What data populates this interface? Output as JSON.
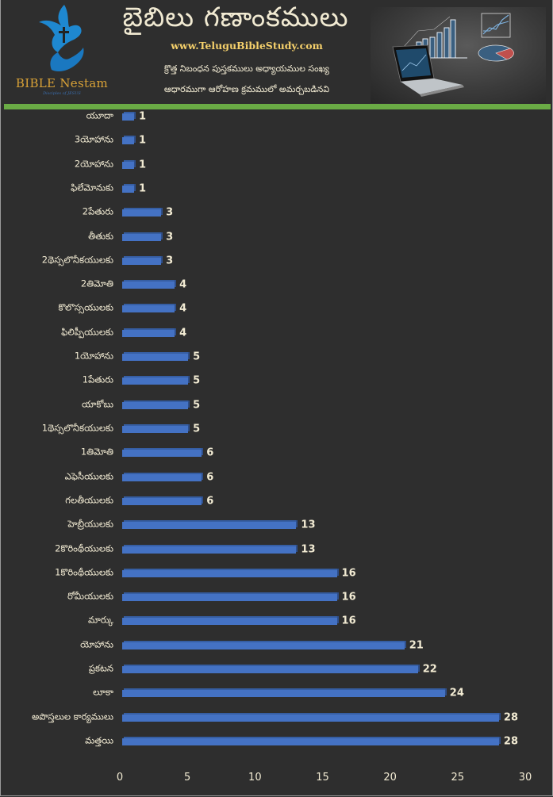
{
  "header": {
    "logo_name": "BIBLE Nestam",
    "logo_tagline": "Disciples of JESUS",
    "title": "బైబిలు గణాంకములు",
    "url": "www.TeluguBibleStudy.com",
    "subtitle_line1": "క్రొత్త నిబంధన పుస్తకములు అధ్యాయముల సంఖ్య",
    "subtitle_line2": "ఆధారముగా ఆరోహణ క్రమములో అమర్చబడినవి",
    "hero_image": "laptop-with-charts-illustration"
  },
  "colors": {
    "background": "#2e2e2e",
    "bar": "#4472c4",
    "accent_green": "#6aab45",
    "text": "#f1ead2",
    "url": "#f5d06b",
    "logo_gold": "#d9a237",
    "logo_blue": "#1e88d0"
  },
  "chart_data": {
    "type": "bar",
    "orientation": "horizontal",
    "title": "బైబిలు గణాంకములు",
    "subtitle": "క్రొత్త నిబంధన పుస్తకములు అధ్యాయముల సంఖ్య ఆధారముగా ఆరోహణ క్రమములో అమర్చబడినవి",
    "xlabel": "",
    "ylabel": "",
    "xlim": [
      0,
      30
    ],
    "x_ticks": [
      "0",
      "5",
      "10",
      "15",
      "20",
      "25",
      "30"
    ],
    "grid": false,
    "legend": null,
    "data_labels": true,
    "categories": [
      "యూదా",
      "3యోహాను",
      "2యోహాను",
      "ఫిలేమోనుకు",
      "2పేతురు",
      "తీతుకు",
      "2థెస్సలొనీకయులకు",
      "2తిమోతి",
      "కొలొస్సయులకు",
      "ఫిలిప్పీయులకు",
      "1యోహాను",
      "1పేతురు",
      "యాకోబు",
      "1థెస్సలొనీకయులకు",
      "1తిమోతి",
      "ఎఫెసీయులకు",
      "గలతీయులకు",
      "హెబ్రీయులకు",
      "2కొరింథీయులకు",
      "1కొరింథీయులకు",
      "రోమీయులకు",
      "మార్కు",
      "యోహాను",
      "ప్రకటన",
      "లూకా",
      "అపొస్తలుల కార్యములు",
      "మత్తయి"
    ],
    "values": [
      1,
      1,
      1,
      1,
      3,
      3,
      3,
      4,
      4,
      4,
      5,
      5,
      5,
      5,
      6,
      6,
      6,
      13,
      13,
      16,
      16,
      16,
      21,
      22,
      24,
      28,
      28
    ]
  }
}
